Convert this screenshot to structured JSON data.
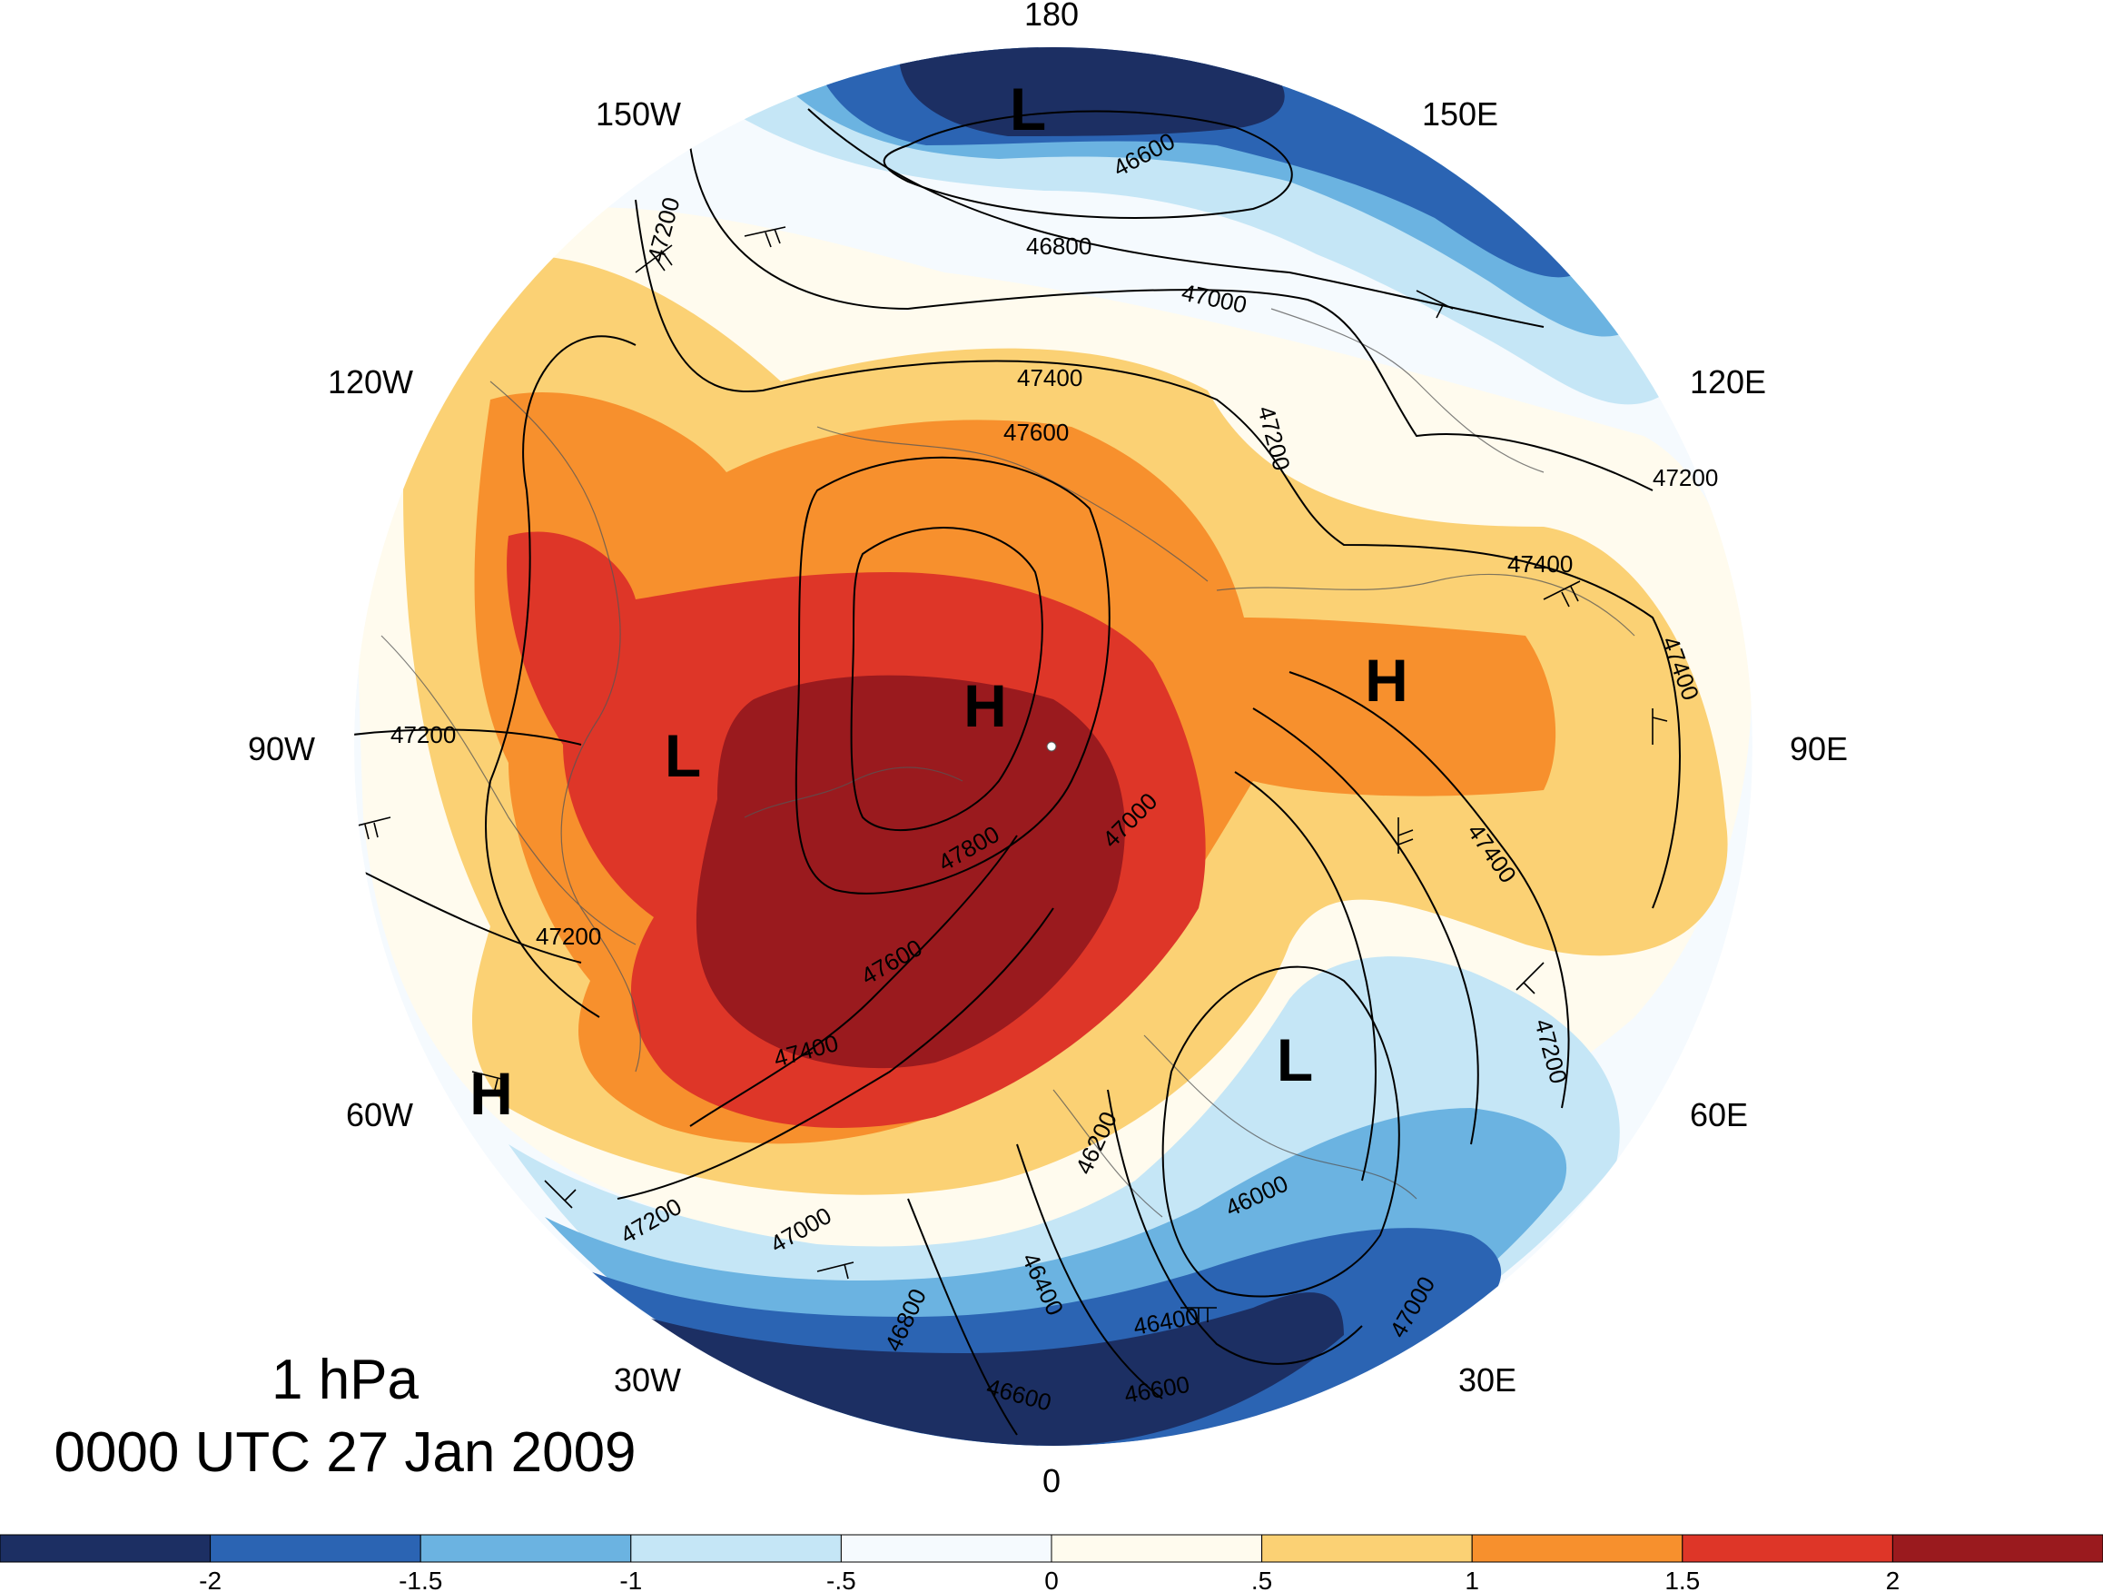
{
  "title": {
    "level": "1 hPa",
    "datetime": "0000 UTC 27 Jan 2009"
  },
  "longitude_labels": {
    "lon_180": "180",
    "lon_150e": "150E",
    "lon_120e": "120E",
    "lon_90e": "90E",
    "lon_60e": "60E",
    "lon_30e": "30E",
    "lon_0": "0",
    "lon_30w": "30W",
    "lon_60w": "60W",
    "lon_90w": "90W",
    "lon_120w": "120W",
    "lon_150w": "150W"
  },
  "pressure_centers": [
    {
      "label": "L",
      "region": "north-pacific"
    },
    {
      "label": "H",
      "region": "arctic"
    },
    {
      "label": "L",
      "region": "canada"
    },
    {
      "label": "H",
      "region": "siberia"
    },
    {
      "label": "L",
      "region": "europe"
    },
    {
      "label": "H",
      "region": "north-atlantic"
    }
  ],
  "contour_labels": [
    "46600",
    "46800",
    "47000",
    "47200",
    "47400",
    "47600",
    "47200",
    "47200",
    "47400",
    "47400",
    "47400",
    "47200",
    "47800",
    "47000",
    "47600",
    "47400",
    "47200",
    "46200",
    "46000",
    "46400",
    "46400",
    "46600",
    "46600",
    "47000",
    "47200",
    "47000",
    "46800",
    "47200"
  ],
  "colorbar": {
    "colors": [
      "#1c2f63",
      "#2b64b3",
      "#6bb3e1",
      "#c5e6f6",
      "#f5fafe",
      "#fffbee",
      "#fbd174",
      "#f7902d",
      "#de3628",
      "#9a1a1e"
    ],
    "tick_labels": [
      "-2",
      "-1.5",
      "-1",
      "-.5",
      "0",
      ".5",
      "1",
      "1.5",
      "2"
    ]
  }
}
